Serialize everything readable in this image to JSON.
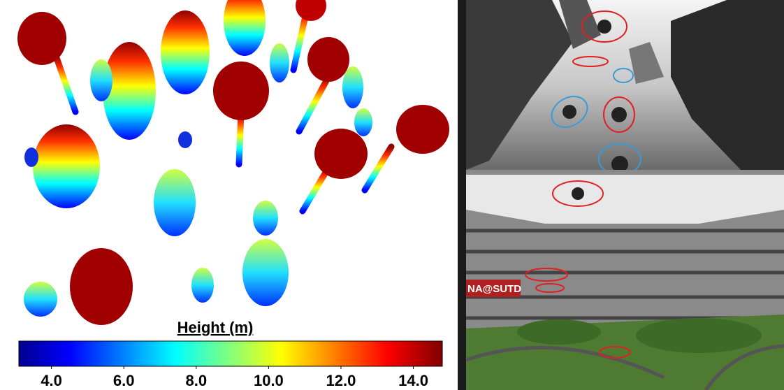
{
  "colorbar": {
    "title": "Height (m)",
    "lim": [
      3.1,
      14.8
    ],
    "ticks": [
      {
        "value": 4,
        "label": "4.0"
      },
      {
        "value": 6,
        "label": "6.0"
      },
      {
        "value": 8,
        "label": "8.0"
      },
      {
        "value": 10,
        "label": "10.0"
      },
      {
        "value": 12,
        "label": "12.0"
      },
      {
        "value": 14,
        "label": "14.0"
      }
    ]
  },
  "photo": {
    "sign": "NA@SUTD"
  }
}
